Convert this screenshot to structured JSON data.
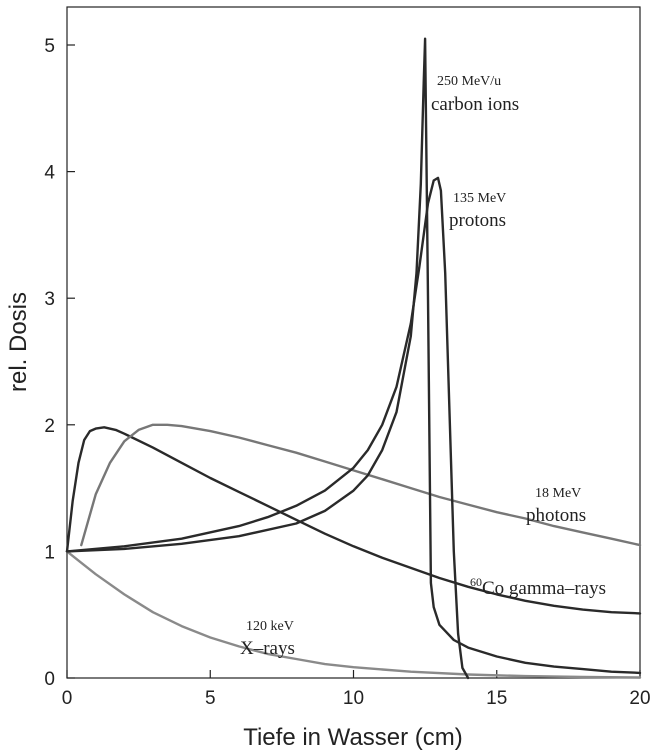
{
  "chart_data": {
    "type": "line",
    "title": "",
    "xlabel": "Tiefe in Wasser (cm)",
    "ylabel": "rel. Dosis",
    "xlim": [
      0,
      20
    ],
    "ylim": [
      0,
      5.2
    ],
    "xticks": [
      0,
      5,
      10,
      15,
      20
    ],
    "yticks": [
      0,
      1,
      2,
      3,
      4,
      5
    ],
    "grid": false,
    "legend": "none",
    "annotations": [
      {
        "id": "carbon",
        "top": "250 MeV/u",
        "bottom": "carbon ions"
      },
      {
        "id": "protons",
        "top": "135 MeV",
        "bottom": "protons"
      },
      {
        "id": "photons",
        "top": "18 MeV",
        "bottom": "photons"
      },
      {
        "id": "co60",
        "sup": "60",
        "text": "Co gamma–rays"
      },
      {
        "id": "xrays",
        "top": "120 keV",
        "bottom": "X–rays"
      }
    ],
    "series": [
      {
        "id": "xrays",
        "color": "#8a8a8a",
        "x": [
          0,
          0.5,
          1,
          2,
          3,
          4,
          5,
          6,
          7,
          8,
          9,
          10,
          12,
          14,
          16,
          18,
          20
        ],
        "y": [
          1.0,
          0.91,
          0.82,
          0.66,
          0.52,
          0.41,
          0.32,
          0.25,
          0.19,
          0.15,
          0.11,
          0.085,
          0.05,
          0.028,
          0.015,
          0.008,
          0.004
        ]
      },
      {
        "id": "co60",
        "color": "#2a2a2a",
        "x": [
          0,
          0.2,
          0.4,
          0.6,
          0.8,
          1.0,
          1.3,
          1.7,
          2,
          3,
          4,
          5,
          6,
          7,
          8,
          9,
          10,
          11,
          12,
          13,
          14,
          15,
          16,
          17,
          18,
          19,
          20
        ],
        "y": [
          1.0,
          1.4,
          1.7,
          1.88,
          1.95,
          1.97,
          1.98,
          1.96,
          1.93,
          1.82,
          1.7,
          1.58,
          1.47,
          1.36,
          1.25,
          1.14,
          1.04,
          0.95,
          0.87,
          0.79,
          0.72,
          0.66,
          0.61,
          0.57,
          0.54,
          0.52,
          0.51
        ]
      },
      {
        "id": "photons",
        "color": "#777777",
        "x": [
          0.5,
          1,
          1.5,
          2,
          2.5,
          3,
          3.5,
          4,
          5,
          6,
          7,
          8,
          9,
          10,
          11,
          12,
          13,
          14,
          15,
          16,
          17,
          18,
          19,
          20
        ],
        "y": [
          1.05,
          1.45,
          1.7,
          1.87,
          1.96,
          2.0,
          2.0,
          1.99,
          1.95,
          1.9,
          1.84,
          1.78,
          1.71,
          1.64,
          1.57,
          1.5,
          1.43,
          1.37,
          1.31,
          1.26,
          1.2,
          1.15,
          1.1,
          1.05
        ]
      },
      {
        "id": "protons",
        "color": "#2a2a2a",
        "x": [
          0,
          2,
          4,
          6,
          7,
          8,
          9,
          10,
          10.5,
          11,
          11.5,
          12,
          12.3,
          12.6,
          12.8,
          12.95,
          13.05,
          13.2,
          13.35,
          13.5,
          13.65,
          13.8,
          14.0
        ],
        "y": [
          1.0,
          1.04,
          1.1,
          1.2,
          1.27,
          1.36,
          1.48,
          1.66,
          1.8,
          2.0,
          2.3,
          2.8,
          3.25,
          3.75,
          3.93,
          3.95,
          3.85,
          3.2,
          2.1,
          1.0,
          0.35,
          0.08,
          0.0
        ]
      },
      {
        "id": "carbon",
        "color": "#2a2a2a",
        "x": [
          0,
          2,
          4,
          6,
          8,
          9,
          10,
          10.5,
          11,
          11.5,
          12,
          12.2,
          12.35,
          12.45,
          12.5,
          12.6,
          12.7,
          12.8,
          13,
          13.5,
          14,
          15,
          16,
          17,
          18,
          19,
          20
        ],
        "y": [
          1.0,
          1.02,
          1.06,
          1.12,
          1.22,
          1.32,
          1.48,
          1.6,
          1.8,
          2.1,
          2.7,
          3.2,
          3.9,
          4.7,
          5.05,
          3.0,
          0.75,
          0.56,
          0.42,
          0.3,
          0.24,
          0.17,
          0.12,
          0.09,
          0.07,
          0.05,
          0.04
        ]
      }
    ]
  }
}
